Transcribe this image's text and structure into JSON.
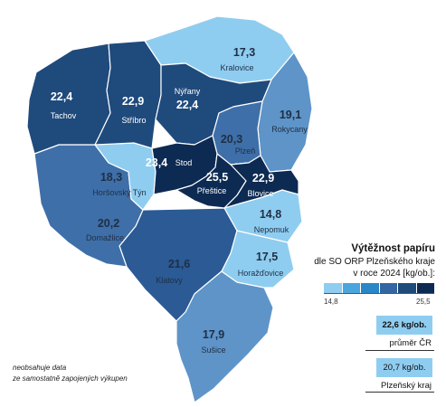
{
  "legend": {
    "title": "Výtěžnost papíru",
    "subtitle_line1": "dle SO ORP Plzeňského kraje",
    "subtitle_line2": "v roce 2024 [kg/ob.]:",
    "min": "14,8",
    "max": "25,5",
    "scale_colors": [
      "#8fcdf0",
      "#4aa6dc",
      "#2a86c6",
      "#3366a2",
      "#1f4a7c",
      "#0d2a52"
    ]
  },
  "stats": {
    "cr_value": "22,6 kg/ob.",
    "cr_label": "průměr ČR",
    "kraj_value": "20,7 kg/ob.",
    "kraj_label": "Plzeňský kraj"
  },
  "note": {
    "line1": "neobsahuje data",
    "line2": "ze samostatně zapojených výkupen"
  },
  "regions": [
    {
      "id": "tachov",
      "value": "22,4",
      "name": "Tachov",
      "fill": "#1f4a7c",
      "text": "#ffffff"
    },
    {
      "id": "stribro",
      "value": "22,9",
      "name": "Stříbro",
      "fill": "#1f4a7c",
      "text": "#ffffff"
    },
    {
      "id": "nyrany",
      "value": "22,4",
      "name": "Nýřany",
      "fill": "#1f4a7c",
      "text": "#ffffff"
    },
    {
      "id": "kralovice",
      "value": "17,3",
      "name": "Kralovice",
      "fill": "#8fcdf0",
      "text": "#1f2f45"
    },
    {
      "id": "rokycany",
      "value": "19,1",
      "name": "Rokycany",
      "fill": "#5e94c8",
      "text": "#1f2f45"
    },
    {
      "id": "plzen",
      "value": "20,3",
      "name": "Plzeň",
      "fill": "#3e6fa8",
      "text": "#1f2f45"
    },
    {
      "id": "stod",
      "value": "23,4",
      "name": "Stod",
      "fill": "#0d2a52",
      "text": "#ffffff"
    },
    {
      "id": "prestice",
      "value": "25,5",
      "name": "Přeštice",
      "fill": "#0d2a52",
      "text": "#ffffff"
    },
    {
      "id": "blovice",
      "value": "22,9",
      "name": "Blovice",
      "fill": "#0d2a52",
      "text": "#ffffff"
    },
    {
      "id": "horsovsky-tyn",
      "value": "18,3",
      "name": "Horšovský Týn",
      "fill": "#8fcdf0",
      "text": "#1f2f45"
    },
    {
      "id": "domazlice",
      "value": "20,2",
      "name": "Domažlice",
      "fill": "#3e6fa8",
      "text": "#1f2f45"
    },
    {
      "id": "klatovy",
      "value": "21,6",
      "name": "Klatovy",
      "fill": "#2b5a95",
      "text": "#1f2f45"
    },
    {
      "id": "nepomuk",
      "value": "14,8",
      "name": "Nepomuk",
      "fill": "#8fcdf0",
      "text": "#1f2f45"
    },
    {
      "id": "horazdovice",
      "value": "17,5",
      "name": "Horažďovice",
      "fill": "#8fcdf0",
      "text": "#1f2f45"
    },
    {
      "id": "susice",
      "value": "17,9",
      "name": "Sušice",
      "fill": "#5e94c8",
      "text": "#1f2f45"
    }
  ]
}
